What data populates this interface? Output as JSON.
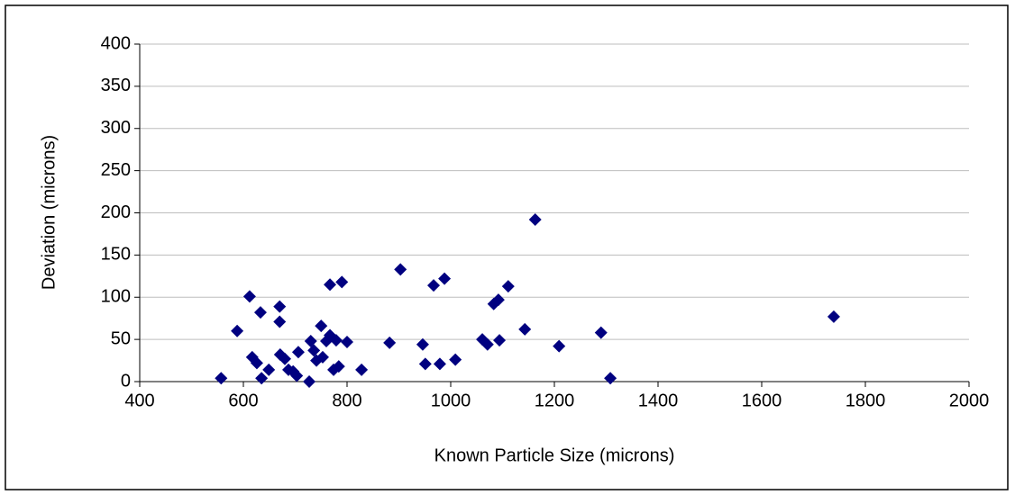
{
  "chart_data": {
    "type": "scatter",
    "x_label": "Known Particle Size (microns)",
    "y_label": "Deviation (microns)",
    "color": "#000080",
    "grid": true,
    "xlim": [
      400,
      2000
    ],
    "xticks": [
      400,
      600,
      800,
      1000,
      1200,
      1400,
      1600,
      1800,
      2000
    ],
    "ylim": [
      0,
      400
    ],
    "yticks": [
      0,
      50,
      100,
      150,
      200,
      250,
      300,
      350,
      400
    ],
    "x": [
      557,
      588,
      612,
      617,
      626,
      633,
      635,
      649,
      670,
      670,
      671,
      680,
      687,
      696,
      703,
      706,
      727,
      730,
      736,
      741,
      750,
      753,
      760,
      767,
      767,
      774,
      779,
      784,
      790,
      800,
      828,
      882,
      903,
      946,
      951,
      967,
      979,
      988,
      1009,
      1061,
      1071,
      1083,
      1092,
      1094,
      1111,
      1143,
      1163,
      1209,
      1290,
      1308,
      1739
    ],
    "values": [
      4,
      60,
      101,
      29,
      22,
      82,
      4,
      14,
      89,
      71,
      32,
      27,
      14,
      12,
      7,
      35,
      0,
      48,
      37,
      25,
      66,
      29,
      48,
      55,
      115,
      14,
      49,
      18,
      118,
      47,
      14,
      46,
      133,
      44,
      21,
      114,
      21,
      122,
      26,
      50,
      44,
      92,
      97,
      49,
      113,
      62,
      192,
      42,
      58,
      4,
      77
    ]
  }
}
